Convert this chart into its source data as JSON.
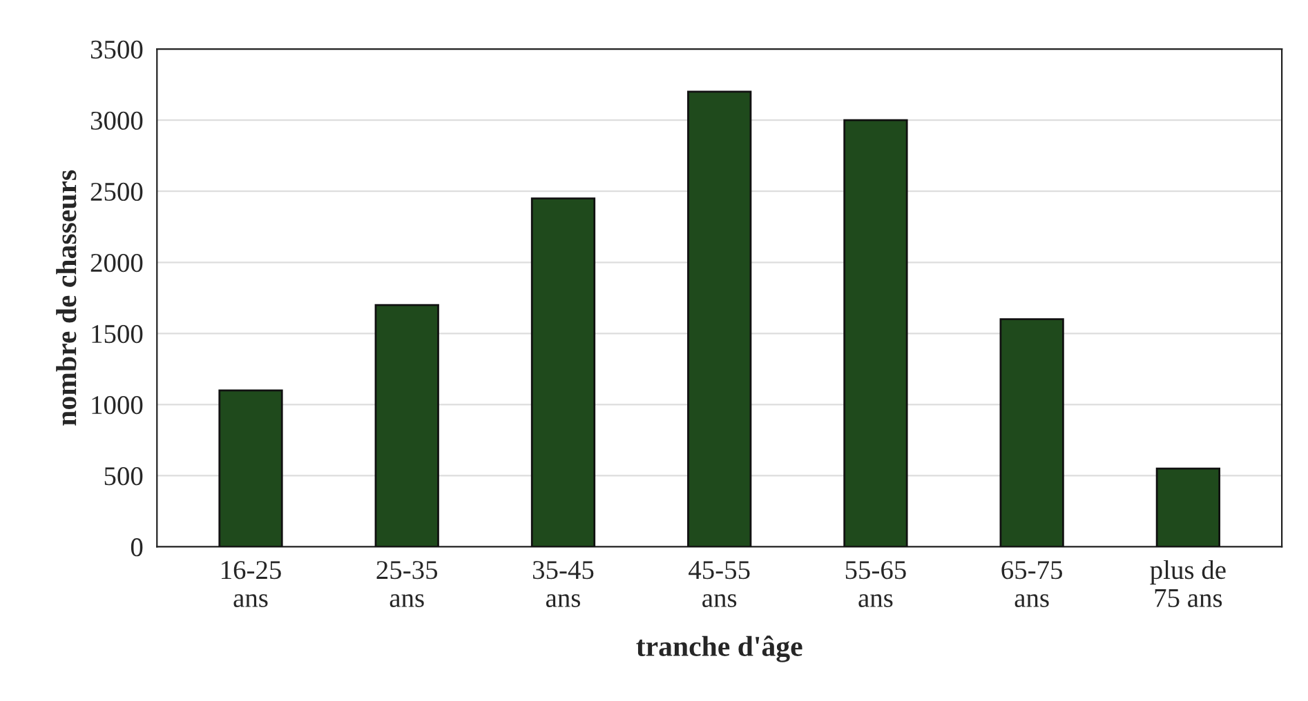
{
  "chart_data": {
    "type": "bar",
    "xlabel": "tranche d'âge",
    "ylabel": "nombre de chasseurs",
    "categories": [
      "16-25\nans",
      "25-35\nans",
      "35-45\nans",
      "45-55\nans",
      "55-65\nans",
      "65-75\nans",
      "plus de\n75 ans"
    ],
    "values": [
      1100,
      1700,
      2450,
      3200,
      3000,
      1600,
      550
    ],
    "color": "#1f4a1c",
    "ylim": [
      0,
      3500
    ],
    "yticks": [
      0,
      500,
      1000,
      1500,
      2000,
      2500,
      3000,
      3500
    ],
    "grid": "y"
  }
}
